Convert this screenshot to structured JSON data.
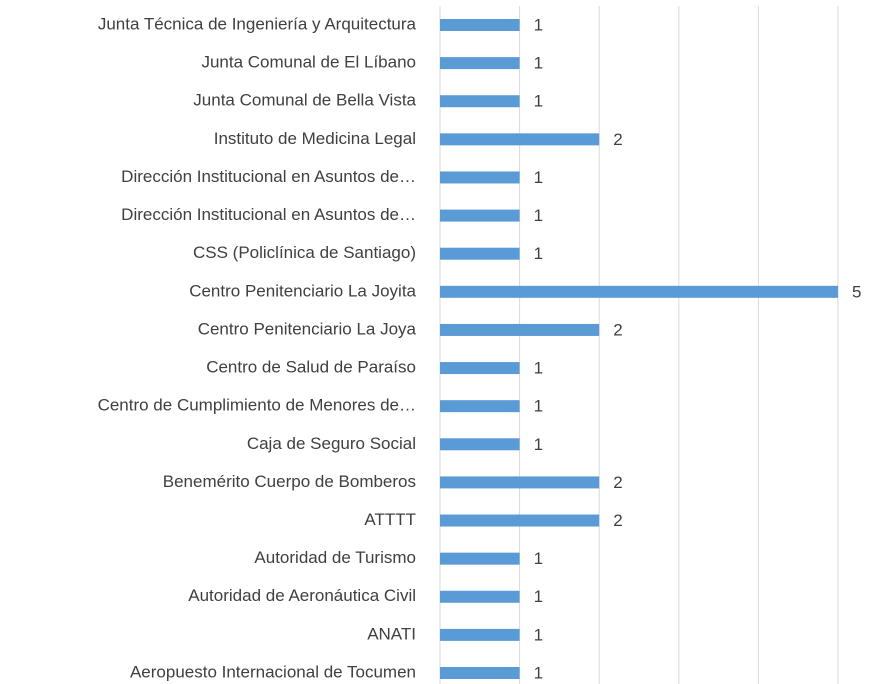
{
  "chart_data": {
    "type": "bar",
    "orientation": "horizontal",
    "categories": [
      "Junta Técnica de Ingeniería y Arquitectura",
      "Junta Comunal de El Líbano",
      "Junta Comunal de Bella Vista",
      "Instituto de Medicina Legal",
      "Dirección Institucional en Asuntos de…",
      "Dirección Institucional en Asuntos de…",
      "CSS (Policlínica de Santiago)",
      "Centro Penitenciario La Joyita",
      "Centro Penitenciario La Joya",
      "Centro de Salud de Paraíso",
      "Centro de Cumplimiento de Menores de…",
      "Caja de Seguro Social",
      "Benemérito Cuerpo de Bomberos",
      "ATTTT",
      "Autoridad de Turismo",
      "Autoridad de Aeronáutica Civil",
      "ANATI",
      "Aeropuesto Internacional de Tocumen"
    ],
    "values": [
      1,
      1,
      1,
      2,
      1,
      1,
      1,
      5,
      2,
      1,
      1,
      1,
      2,
      2,
      1,
      1,
      1,
      1
    ],
    "color": "#5b9bd5",
    "xlim": [
      0,
      5
    ],
    "xticks": [
      0,
      1,
      2,
      3,
      4,
      5
    ],
    "grid": true
  }
}
